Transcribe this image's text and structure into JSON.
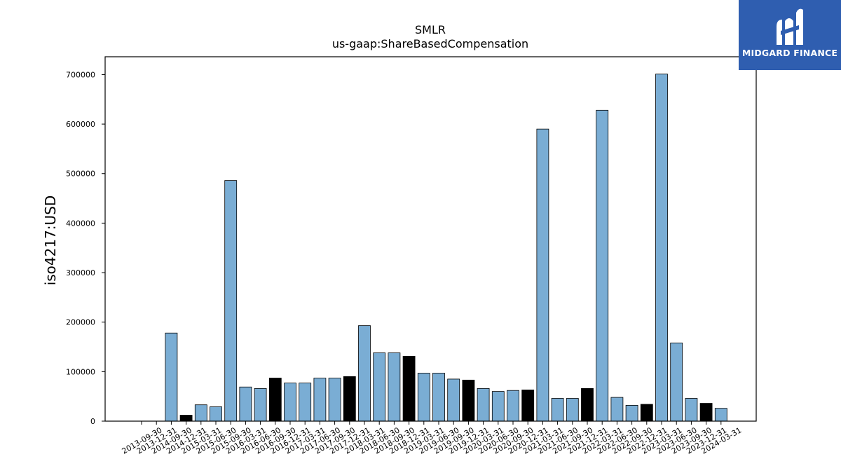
{
  "logo": {
    "text": "MIDGARD FINANCE",
    "background": "#2f5eb0",
    "icon": "midgard-m-logo-icon"
  },
  "chart_data": {
    "type": "bar",
    "title": "SMLR",
    "subtitle": "us-gaap:ShareBasedCompensation",
    "xlabel": "",
    "ylabel": "iso4217:USD",
    "ylim": [
      0,
      736000
    ],
    "yticks": [
      0,
      100000,
      200000,
      300000,
      400000,
      500000,
      600000,
      700000
    ],
    "grid": false,
    "colors": {
      "quarter": "#7aadd4",
      "fiscal_year_end": "#000000",
      "edge": "#000000"
    },
    "categories": [
      "2013-09-30",
      "2013-12-31",
      "2014-09-30",
      "2014-12-31",
      "2015-03-31",
      "2015-06-30",
      "2015-09-30",
      "2016-03-31",
      "2016-06-30",
      "2016-09-30",
      "2016-12-31",
      "2017-03-31",
      "2017-06-30",
      "2017-09-30",
      "2017-12-31",
      "2018-03-31",
      "2018-06-30",
      "2018-09-30",
      "2018-12-31",
      "2019-03-31",
      "2019-06-30",
      "2019-09-30",
      "2019-12-31",
      "2020-03-31",
      "2020-06-30",
      "2020-09-30",
      "2020-12-31",
      "2021-03-31",
      "2021-06-30",
      "2021-09-30",
      "2021-12-31",
      "2022-03-31",
      "2022-06-30",
      "2022-09-30",
      "2022-12-31",
      "2023-03-31",
      "2023-06-30",
      "2023-09-30",
      "2023-12-31",
      "2024-03-31"
    ],
    "series": [
      {
        "values": [
          0,
          0,
          178000,
          12000,
          33000,
          29000,
          486000,
          69000,
          66000,
          87000,
          77000,
          77000,
          87000,
          87000,
          90000,
          193000,
          138000,
          138000,
          131000,
          97000,
          97000,
          85000,
          83000,
          66000,
          60000,
          62000,
          63000,
          590000,
          46000,
          46000,
          66000,
          628000,
          48000,
          32000,
          34000,
          701000,
          158000,
          46000,
          36000,
          26000
        ],
        "fiscal_year_end": [
          false,
          false,
          false,
          true,
          false,
          false,
          false,
          false,
          false,
          true,
          false,
          false,
          false,
          false,
          true,
          false,
          false,
          false,
          true,
          false,
          false,
          false,
          true,
          false,
          false,
          false,
          true,
          false,
          false,
          false,
          true,
          false,
          false,
          false,
          true,
          false,
          false,
          false,
          true,
          false
        ]
      }
    ]
  }
}
